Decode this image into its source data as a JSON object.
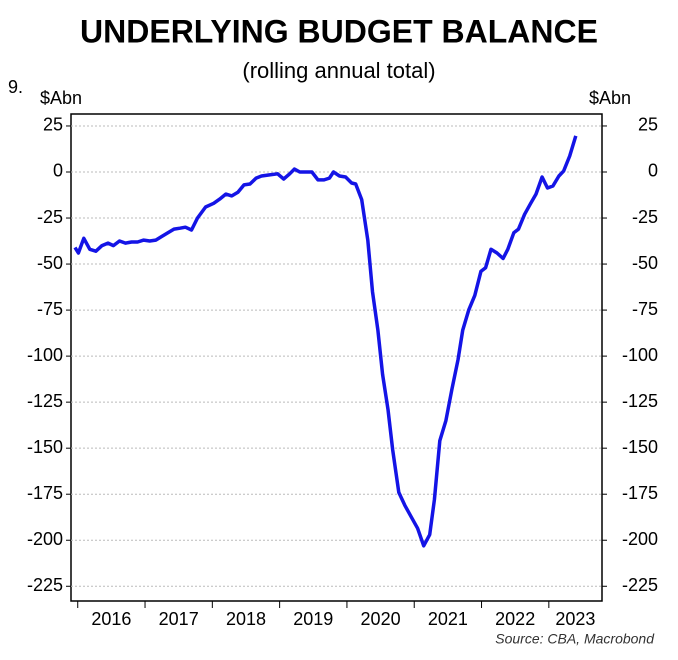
{
  "chart_data": {
    "type": "line",
    "number": "9.",
    "title": "UNDERLYING BUDGET BALANCE",
    "subtitle": "(rolling annual total)",
    "ylabel": "$Abn",
    "y2label": "$Abn",
    "source": "Source: CBA, Macrobond",
    "x": [
      2015.96,
      2016.01,
      2016.09,
      2016.18,
      2016.27,
      2016.36,
      2016.45,
      2016.53,
      2016.62,
      2016.71,
      2016.8,
      2016.89,
      2016.98,
      2017.07,
      2017.16,
      2017.25,
      2017.34,
      2017.43,
      2017.52,
      2017.6,
      2017.69,
      2017.78,
      2017.9,
      2018.02,
      2018.11,
      2018.2,
      2018.29,
      2018.38,
      2018.47,
      2018.56,
      2018.65,
      2018.73,
      2018.85,
      2018.97,
      2019.06,
      2019.15,
      2019.22,
      2019.3,
      2019.39,
      2019.48,
      2019.57,
      2019.66,
      2019.74,
      2019.8,
      2019.89,
      2019.98,
      2020.07,
      2020.13,
      2020.22,
      2020.31,
      2020.38,
      2020.46,
      2020.53,
      2020.61,
      2020.68,
      2020.77,
      2020.86,
      2020.95,
      2021.05,
      2021.14,
      2021.23,
      2021.3,
      2021.38,
      2021.47,
      2021.56,
      2021.65,
      2021.72,
      2021.81,
      2021.9,
      2021.99,
      2022.06,
      2022.14,
      2022.23,
      2022.32,
      2022.39,
      2022.48,
      2022.55,
      2022.64,
      2022.73,
      2022.81,
      2022.9,
      2022.98,
      2023.06,
      2023.15,
      2023.22,
      2023.31,
      2023.4
    ],
    "series": [
      {
        "name": "Underlying budget balance",
        "color": "#1414e6",
        "values": [
          -41,
          -44,
          -36,
          -42,
          -43,
          -40,
          -38.6,
          -40,
          -37.5,
          -38.6,
          -38,
          -38,
          -37,
          -37.5,
          -37,
          -35,
          -33,
          -31,
          -30.5,
          -30,
          -31.5,
          -25,
          -19,
          -17,
          -14.7,
          -12,
          -13,
          -11,
          -7,
          -6.5,
          -3.3,
          -2.2,
          -1.6,
          -1,
          -3.8,
          -1,
          1.6,
          0,
          0,
          0,
          -4.3,
          -4.3,
          -3.3,
          0,
          -2.2,
          -2.7,
          -6,
          -6.5,
          -15,
          -37,
          -65,
          -86,
          -110,
          -129,
          -151,
          -174,
          -181,
          -187,
          -193.5,
          -203,
          -197,
          -178,
          -146,
          -135,
          -118,
          -102,
          -86,
          -75,
          -67,
          -54,
          -52,
          -42,
          -44,
          -47,
          -42,
          -33,
          -31,
          -23,
          -17,
          -12,
          -2.7,
          -8.7,
          -7.6,
          -2.2,
          0.5,
          8.7,
          19.6
        ]
      }
    ],
    "xlim": [
      2015.9,
      2023.79
    ],
    "xticks": [
      2016,
      2017,
      2018,
      2019,
      2020,
      2021,
      2022,
      2023
    ],
    "ylim": [
      -233,
      31.5
    ],
    "yticks": [
      25,
      0,
      -25,
      -50,
      -75,
      -100,
      -125,
      -150,
      -175,
      -200,
      -225
    ],
    "y2lim": [
      -233,
      31.5
    ],
    "y2ticks": [
      25,
      0,
      -25,
      -50,
      -75,
      -100,
      -125,
      -150,
      -175,
      -200,
      -225
    ],
    "grid": true
  }
}
